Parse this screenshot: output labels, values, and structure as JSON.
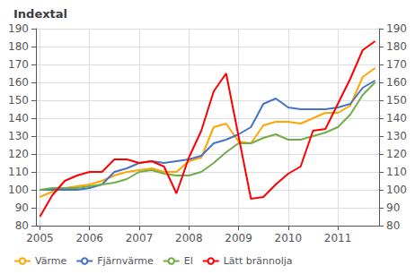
{
  "chart_data": {
    "type": "line",
    "title": "Indextal",
    "x": [
      2005.0,
      2005.25,
      2005.5,
      2005.75,
      2006.0,
      2006.25,
      2006.5,
      2006.75,
      2007.0,
      2007.25,
      2007.5,
      2007.75,
      2008.0,
      2008.25,
      2008.5,
      2008.75,
      2009.0,
      2009.25,
      2009.5,
      2009.75,
      2010.0,
      2010.25,
      2010.5,
      2010.75,
      2011.0,
      2011.25,
      2011.5,
      2011.75
    ],
    "series": [
      {
        "name": "Värme",
        "color": "#FFA500",
        "values": [
          96,
          99,
          101,
          102,
          103,
          105,
          108,
          110,
          111,
          112,
          110,
          110,
          116,
          118,
          135,
          137,
          127,
          126,
          136,
          138,
          138,
          137,
          140,
          143,
          143,
          147,
          163,
          168
        ]
      },
      {
        "name": "Fjärnvärme",
        "color": "#4472C4",
        "values": [
          100,
          100,
          100,
          100,
          101,
          103,
          110,
          112,
          115,
          116,
          115,
          116,
          117,
          119,
          126,
          128,
          131,
          135,
          148,
          151,
          146,
          145,
          145,
          145,
          146,
          148,
          157,
          161
        ]
      },
      {
        "name": "El",
        "color": "#70AD47",
        "values": [
          100,
          101,
          101,
          101,
          102,
          103,
          104,
          106,
          110,
          111,
          109,
          108,
          108,
          110,
          115,
          121,
          126,
          126,
          129,
          131,
          128,
          128,
          130,
          132,
          135,
          142,
          153,
          160
        ]
      },
      {
        "name": "Lätt brännolja",
        "color": "#FF0000",
        "values": [
          85,
          97,
          105,
          108,
          110,
          110,
          117,
          117,
          115,
          116,
          113,
          98,
          118,
          133,
          155,
          165,
          130,
          95,
          96,
          103,
          109,
          113,
          133,
          134,
          148,
          162,
          178,
          183
        ]
      }
    ],
    "xlim": [
      2004.92,
      2011.83
    ],
    "xticks": [
      2005,
      2006,
      2007,
      2008,
      2009,
      2010,
      2011
    ],
    "ylim": [
      80,
      190
    ],
    "yticks": [
      80,
      90,
      100,
      110,
      120,
      130,
      140,
      150,
      160,
      170,
      180,
      190
    ],
    "y2lim": [
      80,
      190
    ],
    "y2ticks": [
      80,
      90,
      100,
      110,
      120,
      130,
      140,
      150,
      160,
      170,
      180,
      190
    ],
    "grid": true,
    "legend": "lower left"
  }
}
